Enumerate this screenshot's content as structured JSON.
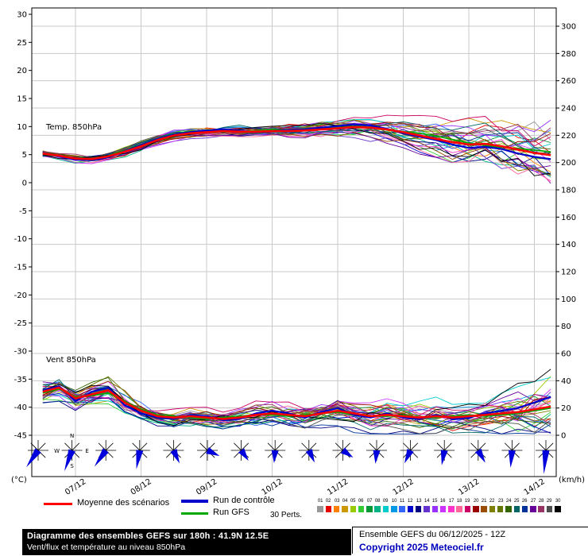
{
  "chart_data": {
    "type": "line",
    "title": "Diagramme des ensembles GEFS sur 180h : 41.9N 12.5E",
    "subtitle": "Vent/flux et température au niveau 850hPa",
    "x": {
      "start_hour": 0,
      "step_hours": 6,
      "points": 32,
      "axis_hour_min": -4,
      "axis_hour_max": 188
    },
    "date_ticks": [
      {
        "label": "07/12",
        "hour": 12
      },
      {
        "label": "08/12",
        "hour": 36
      },
      {
        "label": "09/12",
        "hour": 60
      },
      {
        "label": "10/12",
        "hour": 84
      },
      {
        "label": "11/12",
        "hour": 108
      },
      {
        "label": "12/12",
        "hour": 132
      },
      {
        "label": "13/12",
        "hour": 156
      },
      {
        "label": "14/12",
        "hour": 180
      }
    ],
    "left_axis": {
      "unit": "(°C)",
      "tick_min": -45,
      "tick_max": 30,
      "tick_step": 5
    },
    "right_axis": {
      "unit": "(km/h)",
      "tick_min": 0,
      "tick_max": 300,
      "tick_step": 20
    },
    "panels": [
      {
        "name": "temperature",
        "label": "Temp. 850hPa",
        "axis": "left",
        "mean": [
          5.2,
          4.8,
          4.3,
          4.2,
          4.7,
          5.5,
          6.5,
          7.6,
          8.4,
          8.8,
          9.0,
          9.2,
          9.1,
          9.1,
          9.2,
          9.2,
          9.3,
          9.5,
          9.7,
          9.9,
          9.8,
          9.5,
          9.0,
          8.4,
          7.8,
          7.2,
          6.8,
          6.9,
          6.5,
          5.9,
          5.3,
          4.9
        ],
        "control": [
          5.3,
          4.7,
          4.1,
          4.0,
          4.5,
          5.6,
          6.7,
          7.8,
          8.6,
          9.0,
          9.3,
          9.5,
          9.3,
          9.0,
          9.2,
          9.4,
          9.5,
          9.8,
          10.1,
          10.4,
          10.2,
          9.6,
          8.8,
          8.2,
          7.6,
          6.8,
          6.2,
          6.4,
          6.0,
          5.2,
          4.6,
          4.2
        ],
        "gfs": [
          5.1,
          4.8,
          4.3,
          4.1,
          4.8,
          5.7,
          6.8,
          7.9,
          8.7,
          9.1,
          9.2,
          9.3,
          9.2,
          9.3,
          9.5,
          9.4,
          9.6,
          9.7,
          9.8,
          10.0,
          9.9,
          9.4,
          9.1,
          8.8,
          8.3,
          7.7,
          7.1,
          6.6,
          6.3,
          6.1,
          5.8,
          5.5
        ],
        "spread": [
          0.5,
          0.5,
          0.6,
          0.6,
          0.6,
          0.7,
          0.7,
          0.7,
          0.7,
          0.7,
          0.7,
          0.7,
          0.8,
          0.8,
          0.8,
          0.9,
          0.9,
          1.0,
          1.0,
          1.1,
          1.2,
          1.4,
          1.6,
          1.8,
          2.0,
          2.2,
          2.4,
          2.6,
          2.8,
          3.0,
          3.2,
          3.4
        ]
      },
      {
        "name": "wind",
        "label": "Vent 850hPa",
        "axis": "right",
        "mean": [
          32,
          35,
          27,
          30,
          33,
          24,
          18,
          14,
          13,
          14,
          13,
          12,
          13,
          15,
          16,
          15,
          14,
          16,
          18,
          16,
          14,
          15,
          14,
          13,
          14,
          13,
          14,
          15,
          16,
          17,
          19,
          21
        ],
        "control": [
          33,
          36,
          25,
          32,
          35,
          22,
          16,
          13,
          12,
          15,
          14,
          11,
          12,
          16,
          18,
          16,
          13,
          17,
          20,
          15,
          13,
          16,
          13,
          12,
          15,
          12,
          13,
          16,
          18,
          20,
          24,
          28
        ],
        "gfs": [
          31,
          34,
          28,
          29,
          31,
          25,
          19,
          15,
          14,
          13,
          12,
          13,
          14,
          15,
          15,
          14,
          15,
          16,
          17,
          15,
          14,
          14,
          15,
          13,
          13,
          14,
          15,
          14,
          15,
          16,
          18,
          20
        ],
        "spread": [
          7,
          7,
          7,
          7,
          7,
          7,
          6,
          5,
          5,
          5,
          5,
          5,
          5,
          6,
          6,
          6,
          6,
          7,
          8,
          8,
          7,
          7,
          7,
          7,
          7,
          7,
          7,
          8,
          9,
          10,
          12,
          14
        ]
      }
    ],
    "members": {
      "count": 30,
      "labels": [
        "01",
        "02",
        "03",
        "04",
        "05",
        "06",
        "07",
        "08",
        "09",
        "10",
        "11",
        "12",
        "13",
        "14",
        "15",
        "16",
        "17",
        "18",
        "19",
        "20",
        "21",
        "22",
        "23",
        "24",
        "25",
        "26",
        "27",
        "28",
        "29",
        "30"
      ],
      "colors": [
        "#999999",
        "#e60000",
        "#ff8000",
        "#cc9900",
        "#99cc00",
        "#33cc33",
        "#009933",
        "#00b386",
        "#00cccc",
        "#0099e6",
        "#3366ff",
        "#0000cc",
        "#000080",
        "#6633cc",
        "#9933ff",
        "#cc33ff",
        "#ff33cc",
        "#ff6699",
        "#cc0066",
        "#990000",
        "#994d00",
        "#808000",
        "#667700",
        "#336600",
        "#006666",
        "#003399",
        "#660099",
        "#993366",
        "#4d4d4d",
        "#000000"
      ]
    },
    "wind_barbs": {
      "color": "#0000dd",
      "items": [
        {
          "dir": 215,
          "len": 26
        },
        {
          "dir": 200,
          "len": 28
        },
        {
          "dir": 215,
          "len": 25
        },
        {
          "dir": 190,
          "len": 24
        },
        {
          "dir": 155,
          "len": 18
        },
        {
          "dir": 115,
          "len": 17
        },
        {
          "dir": 145,
          "len": 16
        },
        {
          "dir": 185,
          "len": 16
        },
        {
          "dir": 155,
          "len": 17
        },
        {
          "dir": 125,
          "len": 16
        },
        {
          "dir": 185,
          "len": 17
        },
        {
          "dir": 205,
          "len": 18
        },
        {
          "dir": 190,
          "len": 19
        },
        {
          "dir": 150,
          "len": 18
        },
        {
          "dir": 185,
          "len": 22
        },
        {
          "dir": 185,
          "len": 30
        }
      ]
    },
    "compass": {
      "letters": [
        "N",
        "E",
        "S",
        "W"
      ],
      "at_barb": 1
    },
    "colors": {
      "mean": "#ff0000",
      "control": "#0000cc",
      "gfs": "#00a800",
      "grid": "#c9c9c9",
      "border": "#000000",
      "background": "#ffffff"
    }
  },
  "legend": {
    "mean": "Moyenne des scénarios",
    "control": "Run de contrôle",
    "gfs": "Run GFS",
    "perts": "30 Perts."
  },
  "footer": {
    "title": "Diagramme des ensembles GEFS sur 180h : 41.9N 12.5E",
    "subtitle": "Vent/flux et température au niveau 850hPa",
    "run": "Ensemble GEFS du 06/12/2025 - 12Z",
    "copyright": "Copyright 2025 Meteociel.fr"
  }
}
